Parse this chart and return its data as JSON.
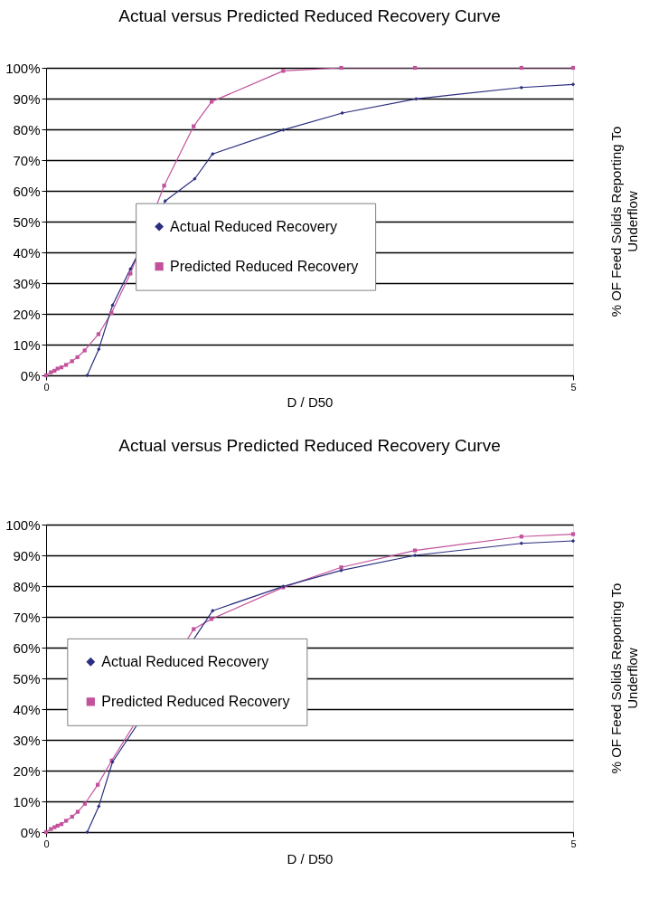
{
  "chart_data": [
    {
      "type": "line",
      "title": "Actual versus Predicted Reduced Recovery Curve",
      "xlabel": "D / D50",
      "ylabel": "% OF Feed Solids Reporting To Underflow",
      "xlim": [
        0,
        5
      ],
      "xticks": [
        0,
        5
      ],
      "ylim": [
        0,
        100
      ],
      "yticks": [
        {
          "value": 0,
          "label": "0%"
        },
        {
          "value": 10,
          "label": "10%"
        },
        {
          "value": 20,
          "label": "20%"
        },
        {
          "value": 30,
          "label": "30%"
        },
        {
          "value": 40,
          "label": "40%"
        },
        {
          "value": 50,
          "label": "50%"
        },
        {
          "value": 60,
          "label": "60%"
        },
        {
          "value": 70,
          "label": "70%"
        },
        {
          "value": 80,
          "label": "80%"
        },
        {
          "value": 90,
          "label": "90%"
        },
        {
          "value": 100,
          "label": "100%"
        }
      ],
      "grid": "y",
      "legend": "center",
      "series": [
        {
          "name": "Actual Reduced Recovery",
          "color": "#2b2f7f",
          "marker": "diamond",
          "x": [
            0.39,
            0.5,
            0.63,
            0.8,
            1.13,
            1.41,
            1.58,
            2.25,
            2.81,
            3.51,
            4.51,
            5.0
          ],
          "values": [
            0,
            8.5,
            22.8,
            34.6,
            56.7,
            63.9,
            72.0,
            79.8,
            85.3,
            89.9,
            93.6,
            94.6
          ]
        },
        {
          "name": "Predicted Reduced Recovery",
          "color": "#c2529c",
          "marker": "square",
          "x": [
            0,
            0.046,
            0.08,
            0.109,
            0.146,
            0.189,
            0.246,
            0.297,
            0.366,
            0.497,
            0.62,
            0.8,
            1.12,
            1.4,
            1.57,
            2.25,
            2.8,
            3.5,
            4.51,
            5.0
          ],
          "values": [
            0,
            1.0,
            1.5,
            2.2,
            2.6,
            3.4,
            4.6,
            5.9,
            8.1,
            13.4,
            20.3,
            33.1,
            61.7,
            81.0,
            89.0,
            99.0,
            100,
            100,
            100,
            100
          ]
        }
      ]
    },
    {
      "type": "line",
      "title": "Actual versus Predicted Reduced Recovery Curve",
      "xlabel": "D / D50",
      "ylabel": "% OF Feed Solids Reporting To Underflow",
      "xlim": [
        0,
        5
      ],
      "xticks": [
        0,
        5
      ],
      "ylim": [
        0,
        100
      ],
      "yticks": [
        {
          "value": 0,
          "label": "0%"
        },
        {
          "value": 10,
          "label": "10%"
        },
        {
          "value": 20,
          "label": "20%"
        },
        {
          "value": 30,
          "label": "30%"
        },
        {
          "value": 40,
          "label": "40%"
        },
        {
          "value": 50,
          "label": "50%"
        },
        {
          "value": 60,
          "label": "60%"
        },
        {
          "value": 70,
          "label": "70%"
        },
        {
          "value": 80,
          "label": "80%"
        },
        {
          "value": 90,
          "label": "90%"
        },
        {
          "value": 100,
          "label": "100%"
        }
      ],
      "grid": "y",
      "legend": "left",
      "series": [
        {
          "name": "Actual Reduced Recovery",
          "color": "#2b2f7f",
          "marker": "diamond",
          "x": [
            0.39,
            0.5,
            0.63,
            1.58,
            2.25,
            2.8,
            3.5,
            4.51,
            5.0
          ],
          "values": [
            0,
            8.4,
            22.8,
            72.0,
            79.9,
            85.1,
            90.0,
            93.9,
            94.7
          ]
        },
        {
          "name": "Predicted Reduced Recovery",
          "color": "#c2529c",
          "marker": "square",
          "x": [
            0,
            0.046,
            0.08,
            0.109,
            0.146,
            0.19,
            0.247,
            0.3,
            0.368,
            0.49,
            0.623,
            1.4,
            1.57,
            2.25,
            2.8,
            3.5,
            4.51,
            5.0
          ],
          "values": [
            0,
            1.0,
            1.6,
            2.1,
            2.6,
            3.7,
            5.0,
            6.6,
            9.2,
            15.4,
            23.3,
            66.0,
            69.3,
            79.6,
            86.1,
            91.6,
            96.1,
            96.9
          ]
        }
      ]
    }
  ]
}
